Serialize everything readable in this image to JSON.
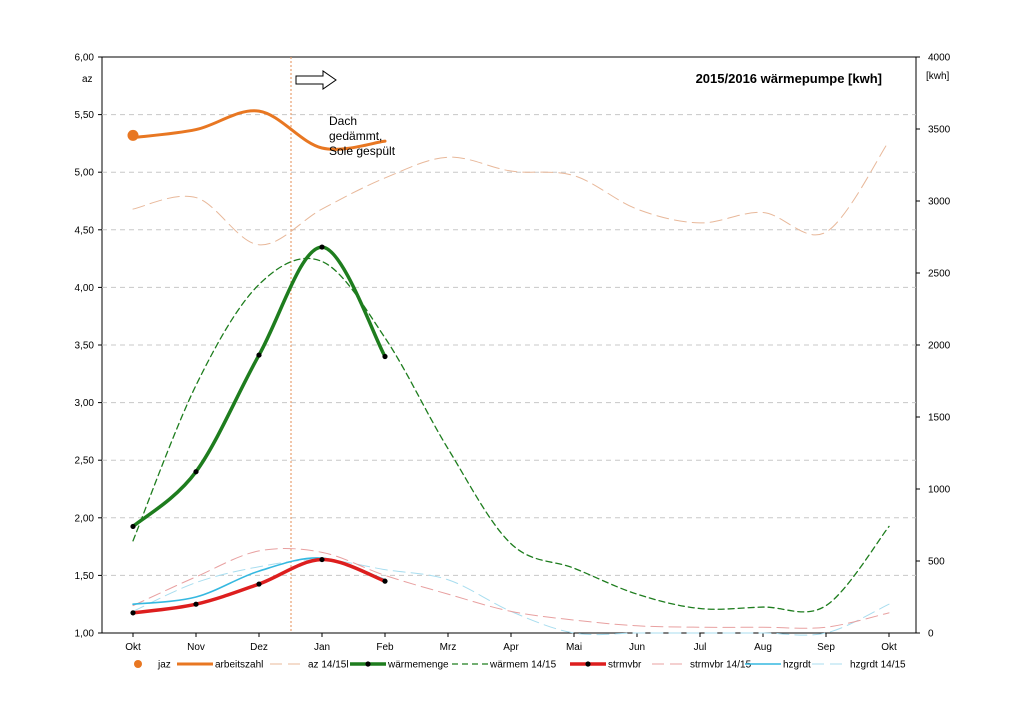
{
  "chart_data": {
    "type": "line",
    "title": "2015/2016 wärmepumpe [kwh]",
    "ylabel_left": "az",
    "ylabel_right": "[kwh]",
    "categories": [
      "Okt",
      "Nov",
      "Dez",
      "Jan",
      "Feb",
      "Mrz",
      "Apr",
      "Mai",
      "Jun",
      "Jul",
      "Aug",
      "Sep",
      "Okt"
    ],
    "y_left": {
      "lim": [
        1.0,
        6.0
      ],
      "ticks": [
        "1,00",
        "1,50",
        "2,00",
        "2,50",
        "3,00",
        "3,50",
        "4,00",
        "4,50",
        "5,00",
        "5,50",
        "6,00"
      ]
    },
    "y_right": {
      "lim": [
        0,
        4000
      ],
      "ticks": [
        "0",
        "500",
        "1000",
        "1500",
        "2000",
        "2500",
        "3000",
        "3500",
        "4000"
      ]
    },
    "grid": "horizontal dashed",
    "legend_position": "bottom",
    "annotation": {
      "lines": [
        "Dach",
        "gedämmt,",
        "Sole gespült"
      ]
    },
    "series": [
      {
        "name": "jaz",
        "axis": "left",
        "color": "#e87722",
        "style": "marker",
        "values": [
          5.32,
          null,
          null,
          null,
          null,
          null,
          null,
          null,
          null,
          null,
          null,
          null,
          null
        ]
      },
      {
        "name": "arbeitszahl",
        "axis": "left",
        "color": "#e87722",
        "style": "solid-thick",
        "values": [
          5.3,
          5.37,
          5.53,
          5.21,
          5.27,
          null,
          null,
          null,
          null,
          null,
          null,
          null,
          null
        ]
      },
      {
        "name": "az 14/15l",
        "axis": "left",
        "color": "#e8b89a",
        "style": "dashed-thin",
        "values": [
          4.68,
          4.78,
          4.37,
          4.68,
          4.95,
          5.13,
          5.01,
          4.97,
          4.68,
          4.56,
          4.65,
          4.48,
          5.27
        ]
      },
      {
        "name": "wärmemenge",
        "axis": "right",
        "color": "#1e7d1e",
        "style": "solid-thick-dots",
        "values": [
          740,
          1120,
          1930,
          2680,
          1920,
          null,
          null,
          null,
          null,
          null,
          null,
          null,
          null
        ]
      },
      {
        "name": "wärmem 14/15",
        "axis": "right",
        "color": "#1e7d1e",
        "style": "dashed",
        "values": [
          640,
          1720,
          2420,
          2580,
          2050,
          1280,
          620,
          450,
          270,
          170,
          180,
          190,
          740
        ]
      },
      {
        "name": "strmvbr",
        "axis": "right",
        "color": "#dd1e1e",
        "style": "solid-thick-dots",
        "values": [
          140,
          200,
          340,
          510,
          360,
          null,
          null,
          null,
          null,
          null,
          null,
          null,
          null
        ]
      },
      {
        "name": "strmvbr 14/15",
        "axis": "right",
        "color": "#e8a0a0",
        "style": "dashed-thin",
        "values": [
          190,
          390,
          570,
          560,
          400,
          270,
          150,
          90,
          50,
          40,
          40,
          40,
          140
        ]
      },
      {
        "name": "hzgrdt",
        "axis": "right",
        "color": "#35b8e0",
        "style": "solid",
        "values": [
          200,
          250,
          430,
          520,
          370,
          null,
          null,
          null,
          null,
          null,
          null,
          null,
          null
        ]
      },
      {
        "name": "hzgrdt 14/15",
        "axis": "right",
        "color": "#a8ddef",
        "style": "dashed-thin",
        "values": [
          150,
          350,
          460,
          510,
          440,
          370,
          150,
          0,
          0,
          0,
          0,
          0,
          200
        ]
      }
    ]
  }
}
